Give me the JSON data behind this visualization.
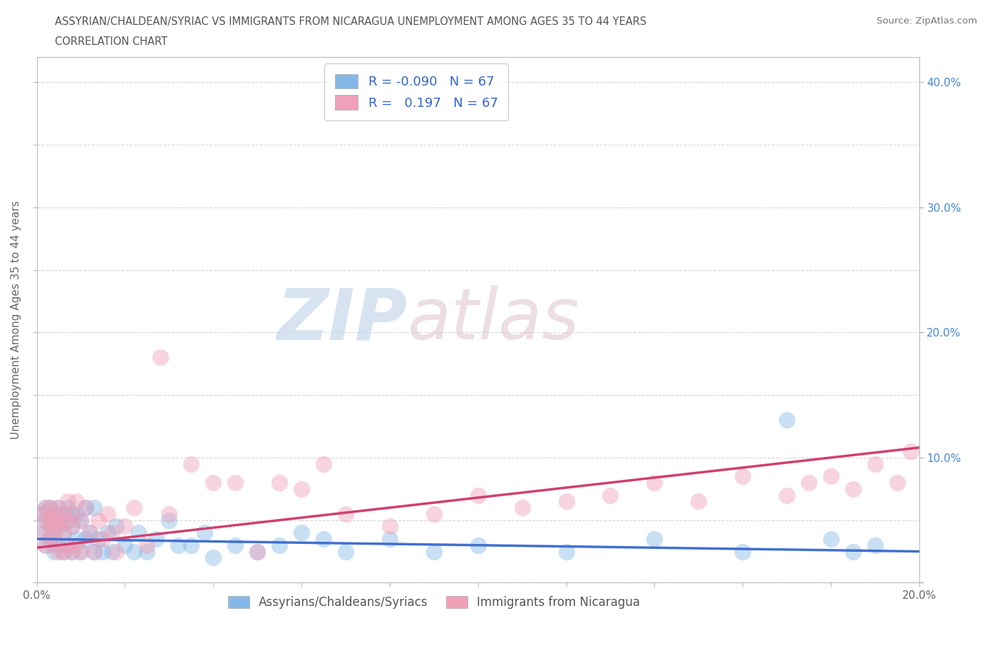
{
  "title_line1": "ASSYRIAN/CHALDEAN/SYRIAC VS IMMIGRANTS FROM NICARAGUA UNEMPLOYMENT AMONG AGES 35 TO 44 YEARS",
  "title_line2": "CORRELATION CHART",
  "source_text": "Source: ZipAtlas.com",
  "ylabel": "Unemployment Among Ages 35 to 44 years",
  "xlim": [
    0.0,
    0.2
  ],
  "ylim": [
    0.0,
    0.42
  ],
  "xticks": [
    0.0,
    0.02,
    0.04,
    0.06,
    0.08,
    0.1,
    0.12,
    0.14,
    0.16,
    0.18,
    0.2
  ],
  "yticks": [
    0.0,
    0.05,
    0.1,
    0.15,
    0.2,
    0.25,
    0.3,
    0.35,
    0.4
  ],
  "ytick_labels": [
    "",
    "",
    "",
    "",
    "",
    "",
    "",
    "",
    ""
  ],
  "xtick_labels": [
    "0.0%",
    "",
    "",
    "",
    "",
    "",
    "",
    "",
    "",
    "",
    "20.0%"
  ],
  "right_ytick_labels": [
    "",
    "10.0%",
    "20.0%",
    "30.0%",
    "40.0%"
  ],
  "right_yticks": [
    0.0,
    0.1,
    0.2,
    0.3,
    0.4
  ],
  "blue_label": "Assyrians/Chaldeans/Syriacs",
  "pink_label": "Immigrants from Nicaragua",
  "blue_R": -0.09,
  "pink_R": 0.197,
  "blue_N": 67,
  "pink_N": 67,
  "blue_color": "#85B8E8",
  "pink_color": "#F0A0B8",
  "blue_line_color": "#4070D0",
  "pink_line_color": "#D04070",
  "watermark_zip": "ZIP",
  "watermark_atlas": "atlas",
  "background_color": "#FFFFFF",
  "blue_x": [
    0.001,
    0.001,
    0.002,
    0.002,
    0.002,
    0.003,
    0.003,
    0.003,
    0.003,
    0.004,
    0.004,
    0.004,
    0.004,
    0.004,
    0.005,
    0.005,
    0.005,
    0.005,
    0.006,
    0.006,
    0.006,
    0.007,
    0.007,
    0.007,
    0.008,
    0.008,
    0.008,
    0.009,
    0.009,
    0.01,
    0.01,
    0.011,
    0.011,
    0.012,
    0.013,
    0.013,
    0.014,
    0.015,
    0.016,
    0.017,
    0.018,
    0.02,
    0.022,
    0.023,
    0.025,
    0.027,
    0.03,
    0.032,
    0.035,
    0.038,
    0.04,
    0.045,
    0.05,
    0.055,
    0.06,
    0.065,
    0.07,
    0.08,
    0.09,
    0.1,
    0.12,
    0.14,
    0.16,
    0.17,
    0.18,
    0.185,
    0.19
  ],
  "blue_y": [
    0.04,
    0.055,
    0.03,
    0.05,
    0.06,
    0.035,
    0.045,
    0.05,
    0.06,
    0.025,
    0.04,
    0.048,
    0.055,
    0.035,
    0.03,
    0.045,
    0.05,
    0.06,
    0.025,
    0.04,
    0.055,
    0.03,
    0.05,
    0.06,
    0.025,
    0.045,
    0.055,
    0.035,
    0.055,
    0.025,
    0.05,
    0.035,
    0.06,
    0.04,
    0.025,
    0.06,
    0.035,
    0.025,
    0.04,
    0.025,
    0.045,
    0.03,
    0.025,
    0.04,
    0.025,
    0.035,
    0.05,
    0.03,
    0.03,
    0.04,
    0.02,
    0.03,
    0.025,
    0.03,
    0.04,
    0.035,
    0.025,
    0.035,
    0.025,
    0.03,
    0.025,
    0.035,
    0.025,
    0.13,
    0.035,
    0.025,
    0.03
  ],
  "pink_x": [
    0.001,
    0.001,
    0.002,
    0.002,
    0.002,
    0.003,
    0.003,
    0.003,
    0.003,
    0.004,
    0.004,
    0.004,
    0.004,
    0.005,
    0.005,
    0.005,
    0.005,
    0.006,
    0.006,
    0.006,
    0.007,
    0.007,
    0.007,
    0.008,
    0.008,
    0.008,
    0.009,
    0.009,
    0.01,
    0.01,
    0.011,
    0.012,
    0.013,
    0.014,
    0.015,
    0.016,
    0.017,
    0.018,
    0.02,
    0.022,
    0.025,
    0.028,
    0.03,
    0.035,
    0.04,
    0.045,
    0.05,
    0.055,
    0.06,
    0.065,
    0.07,
    0.08,
    0.09,
    0.1,
    0.11,
    0.12,
    0.13,
    0.14,
    0.15,
    0.16,
    0.17,
    0.175,
    0.18,
    0.185,
    0.19,
    0.195,
    0.198
  ],
  "pink_y": [
    0.04,
    0.055,
    0.03,
    0.05,
    0.06,
    0.035,
    0.045,
    0.05,
    0.06,
    0.03,
    0.04,
    0.048,
    0.055,
    0.025,
    0.045,
    0.05,
    0.06,
    0.025,
    0.04,
    0.055,
    0.03,
    0.05,
    0.065,
    0.025,
    0.045,
    0.055,
    0.03,
    0.065,
    0.025,
    0.05,
    0.06,
    0.04,
    0.025,
    0.05,
    0.035,
    0.055,
    0.04,
    0.025,
    0.045,
    0.06,
    0.03,
    0.18,
    0.055,
    0.095,
    0.08,
    0.08,
    0.025,
    0.08,
    0.075,
    0.095,
    0.055,
    0.045,
    0.055,
    0.07,
    0.06,
    0.065,
    0.07,
    0.08,
    0.065,
    0.085,
    0.07,
    0.08,
    0.085,
    0.075,
    0.095,
    0.08,
    0.105
  ]
}
